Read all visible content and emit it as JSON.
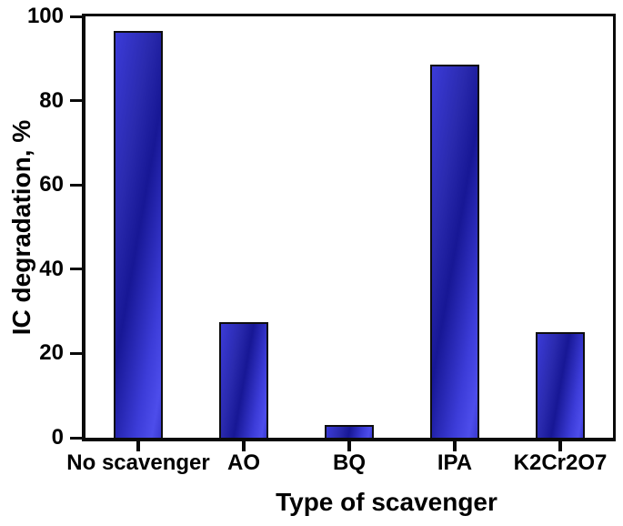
{
  "figure": {
    "background": "#ffffff",
    "text_color": "#000000"
  },
  "chart_data": {
    "type": "bar",
    "title": "",
    "xlabel": "Type of scavenger",
    "ylabel": "IC degradation, %",
    "categories": [
      "No scavenger",
      "AO",
      "BQ",
      "IPA",
      "K2Cr2O7"
    ],
    "values": [
      96.5,
      27.5,
      3,
      88.5,
      25
    ],
    "ylim": [
      0,
      100
    ],
    "yticks": [
      0,
      20,
      40,
      60,
      80,
      100
    ],
    "grid": false,
    "legend": "none",
    "bar_colors": {
      "base": "#3333cc",
      "light": "#4d4deb",
      "dark": "#171795",
      "border": "#0e0e0e"
    },
    "axis_color": "#0a0a0a"
  }
}
